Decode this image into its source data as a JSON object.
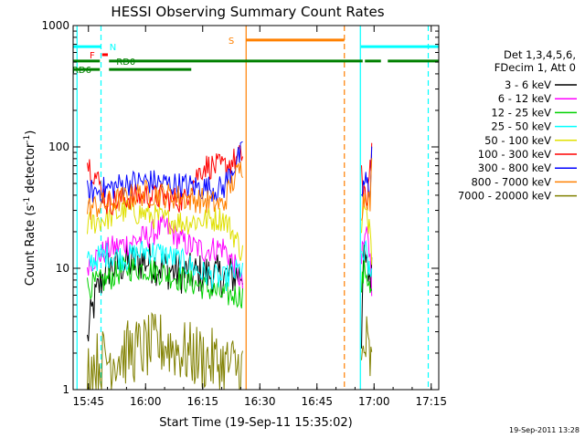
{
  "chart_data": {
    "type": "line",
    "title": "HESSI Observing Summary Count Rates",
    "ylabel_main": "Count Rate (s",
    "ylabel_sup1": "-1",
    "ylabel_mid": " detector",
    "ylabel_sup2": "-1",
    "ylabel_end": ")",
    "xlabel": "Start Time (19-Sep-11 15:35:02)",
    "timestamp": "19-Sep-2011 13:28",
    "yscale": "log",
    "ylim": [
      1,
      1000
    ],
    "xlim": [
      15.683,
      17.283
    ],
    "xticks": [
      {
        "label": "15:45",
        "t": 15.75
      },
      {
        "label": "16:00",
        "t": 16.0
      },
      {
        "label": "16:15",
        "t": 16.25
      },
      {
        "label": "16:30",
        "t": 16.5
      },
      {
        "label": "16:45",
        "t": 16.75
      },
      {
        "label": "17:00",
        "t": 17.0
      },
      {
        "label": "17:15",
        "t": 17.25
      }
    ],
    "yticks": [
      {
        "label": "1",
        "v": 1
      },
      {
        "label": "10",
        "v": 10
      },
      {
        "label": "100",
        "v": 100
      },
      {
        "label": "1000",
        "v": 1000
      }
    ],
    "legend_header": [
      "Det 1,3,4,5,6,",
      "FDecim 1, Att 0"
    ],
    "series": [
      {
        "name": "3 - 6 keV",
        "color": "#000000",
        "v": [
          2.5,
          10,
          11,
          11.5,
          10,
          9,
          9,
          8.5,
          9
        ]
      },
      {
        "name": "6 - 12 keV",
        "color": "#ff00ff",
        "v": [
          11,
          14,
          16,
          18,
          22,
          16,
          14,
          15,
          7
        ]
      },
      {
        "name": "12 - 25 keV",
        "color": "#00d000",
        "v": [
          7,
          8,
          10,
          10,
          9,
          8,
          7,
          6,
          6
        ]
      },
      {
        "name": "25 - 50 keV",
        "color": "#00ffff",
        "v": [
          11,
          13,
          12,
          14,
          13,
          11,
          9,
          8,
          10
        ]
      },
      {
        "name": "50 - 100 keV",
        "color": "#e0e000",
        "v": [
          23,
          26,
          30,
          28,
          25,
          24,
          25,
          26,
          13
        ]
      },
      {
        "name": "100 - 300 keV",
        "color": "#ff0000",
        "v": [
          75,
          34,
          38,
          40,
          38,
          36,
          70,
          68,
          85
        ]
      },
      {
        "name": "300 - 800 keV",
        "color": "#0000ff",
        "v": [
          42,
          45,
          50,
          52,
          50,
          48,
          46,
          45,
          90
        ]
      },
      {
        "name": "800 - 7000 keV",
        "color": "#ff8000",
        "v": [
          31,
          34,
          38,
          42,
          40,
          38,
          36,
          33,
          70
        ]
      },
      {
        "name": "7000 - 20000 keV",
        "color": "#808000",
        "v": [
          1.5,
          1.8,
          2.0,
          2.2,
          2.4,
          2.0,
          1.8,
          1.6,
          1.5
        ]
      }
    ],
    "flags": [
      {
        "label": "N",
        "color": "#00ffff",
        "segments": [
          [
            15.683,
            15.805
          ],
          [
            16.942,
            17.283
          ]
        ],
        "level": 670,
        "label_t": 15.83,
        "label_side": "right"
      },
      {
        "label": "F",
        "color": "#ff0000",
        "segments": [
          [
            15.81,
            15.835
          ]
        ],
        "level": 575,
        "label_t": 15.79,
        "label_side": "left"
      },
      {
        "label": "S",
        "color": "#ff8000",
        "segments": [
          [
            16.44,
            16.87
          ]
        ],
        "level": 760,
        "label_t": 16.4,
        "label_side": "left"
      },
      {
        "label": "RD0",
        "color": "#008000",
        "segments": [
          [
            15.683,
            15.8
          ],
          [
            15.84,
            16.95
          ],
          [
            16.96,
            17.03
          ],
          [
            17.06,
            17.283
          ]
        ],
        "level": 510,
        "label_t": 15.86,
        "label_side": "right"
      },
      {
        "label": "RD6",
        "color": "#008000",
        "segments": [
          [
            15.683,
            15.8
          ],
          [
            15.84,
            16.2
          ]
        ],
        "level": 435,
        "label_t": 15.775,
        "label_side": "left"
      }
    ],
    "vlines": [
      {
        "t": 15.7,
        "color": "#00ffff",
        "style": "solid"
      },
      {
        "t": 15.805,
        "color": "#00ffff",
        "style": "dashed"
      },
      {
        "t": 16.44,
        "color": "#ff8000",
        "style": "solid"
      },
      {
        "t": 16.87,
        "color": "#ff8000",
        "style": "dashed"
      },
      {
        "t": 16.94,
        "color": "#00ffff",
        "style": "solid"
      },
      {
        "t": 17.237,
        "color": "#00ffff",
        "style": "dashed"
      }
    ],
    "data_intervals": [
      [
        15.745,
        16.425
      ],
      [
        16.945,
        16.99
      ]
    ]
  }
}
